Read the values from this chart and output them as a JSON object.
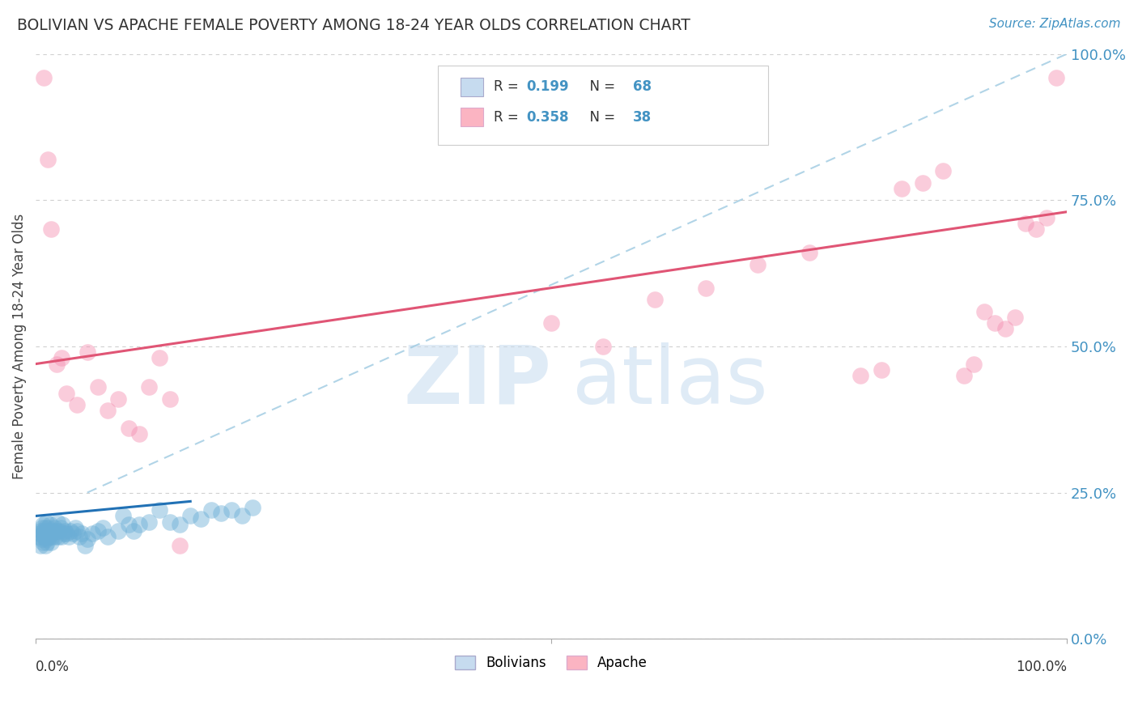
{
  "title": "BOLIVIAN VS APACHE FEMALE POVERTY AMONG 18-24 YEAR OLDS CORRELATION CHART",
  "source_text": "Source: ZipAtlas.com",
  "ylabel": "Female Poverty Among 18-24 Year Olds",
  "blue_color": "#6baed6",
  "pink_color": "#f48fb1",
  "blue_line_color": "#2171b5",
  "pink_line_color": "#e05575",
  "dashed_line_color": "#9ecae1",
  "watermark_color": "#c6dbef",
  "legend_blue_fill": "#c6dbef",
  "legend_pink_fill": "#fbb4c2",
  "ytick_color": "#4393c3",
  "grid_color": "#d0d0d0",
  "title_color": "#333333",
  "source_color": "#4393c3",
  "bolivian_x": [
    0.003,
    0.004,
    0.005,
    0.005,
    0.006,
    0.006,
    0.007,
    0.007,
    0.007,
    0.008,
    0.008,
    0.009,
    0.009,
    0.01,
    0.01,
    0.01,
    0.011,
    0.011,
    0.012,
    0.012,
    0.013,
    0.013,
    0.014,
    0.015,
    0.015,
    0.016,
    0.017,
    0.018,
    0.019,
    0.02,
    0.021,
    0.022,
    0.023,
    0.024,
    0.025,
    0.026,
    0.027,
    0.028,
    0.03,
    0.032,
    0.034,
    0.036,
    0.038,
    0.04,
    0.042,
    0.045,
    0.048,
    0.05,
    0.055,
    0.06,
    0.065,
    0.07,
    0.08,
    0.085,
    0.09,
    0.095,
    0.1,
    0.11,
    0.12,
    0.13,
    0.14,
    0.15,
    0.16,
    0.17,
    0.18,
    0.19,
    0.2,
    0.21
  ],
  "bolivian_y": [
    0.175,
    0.18,
    0.16,
    0.185,
    0.17,
    0.19,
    0.165,
    0.18,
    0.195,
    0.175,
    0.185,
    0.16,
    0.19,
    0.17,
    0.185,
    0.2,
    0.175,
    0.165,
    0.18,
    0.19,
    0.185,
    0.175,
    0.195,
    0.18,
    0.165,
    0.175,
    0.185,
    0.19,
    0.175,
    0.185,
    0.2,
    0.175,
    0.185,
    0.19,
    0.175,
    0.195,
    0.18,
    0.185,
    0.18,
    0.175,
    0.185,
    0.18,
    0.19,
    0.185,
    0.175,
    0.18,
    0.16,
    0.17,
    0.18,
    0.185,
    0.19,
    0.175,
    0.185,
    0.21,
    0.195,
    0.185,
    0.195,
    0.2,
    0.22,
    0.2,
    0.195,
    0.21,
    0.205,
    0.22,
    0.215,
    0.22,
    0.21,
    0.225
  ],
  "apache_x": [
    0.008,
    0.012,
    0.015,
    0.02,
    0.025,
    0.03,
    0.04,
    0.05,
    0.06,
    0.07,
    0.08,
    0.09,
    0.1,
    0.11,
    0.12,
    0.13,
    0.14,
    0.5,
    0.55,
    0.6,
    0.65,
    0.7,
    0.75,
    0.8,
    0.82,
    0.84,
    0.86,
    0.88,
    0.9,
    0.91,
    0.92,
    0.93,
    0.94,
    0.95,
    0.96,
    0.97,
    0.98,
    0.99
  ],
  "apache_y": [
    0.96,
    0.82,
    0.7,
    0.47,
    0.48,
    0.42,
    0.4,
    0.49,
    0.43,
    0.39,
    0.41,
    0.36,
    0.35,
    0.43,
    0.48,
    0.41,
    0.16,
    0.54,
    0.5,
    0.58,
    0.6,
    0.64,
    0.66,
    0.45,
    0.46,
    0.77,
    0.78,
    0.8,
    0.45,
    0.47,
    0.56,
    0.54,
    0.53,
    0.55,
    0.71,
    0.7,
    0.72,
    0.96
  ],
  "pink_line_x0": 0.0,
  "pink_line_y0": 0.47,
  "pink_line_x1": 1.0,
  "pink_line_y1": 0.73,
  "blue_line_x0": 0.0,
  "blue_line_y0": 0.21,
  "blue_line_x1": 0.15,
  "blue_line_y1": 0.235,
  "dash_line_x0": 0.05,
  "dash_line_y0": 0.25,
  "dash_line_x1": 1.0,
  "dash_line_y1": 1.0,
  "xlim": [
    0.0,
    1.0
  ],
  "ylim": [
    0.0,
    1.0
  ],
  "yticks": [
    0.0,
    0.25,
    0.5,
    0.75,
    1.0
  ],
  "ytick_labels": [
    "0.0%",
    "25.0%",
    "50.0%",
    "75.0%",
    "100.0%"
  ]
}
